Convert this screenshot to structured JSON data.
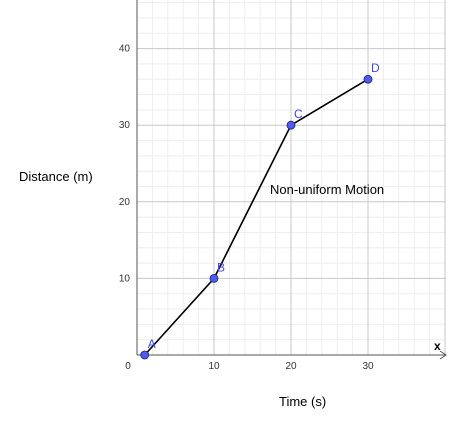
{
  "chart_data": {
    "type": "line",
    "xlabel": "Time (s)",
    "ylabel": "Distance (m)",
    "x_axis_name": "x",
    "annotation": "Non-uniform Motion",
    "xlim": [
      0,
      40
    ],
    "ylim": [
      0,
      46
    ],
    "x_ticks": [
      0,
      10,
      20,
      30
    ],
    "y_ticks": [
      10,
      20,
      30,
      40
    ],
    "grid": true,
    "point_color": "#4f5bf0",
    "label_color": "#3f48e0",
    "line_color": "#000000",
    "points": [
      {
        "label": "A",
        "x": 1,
        "y": 0
      },
      {
        "label": "B",
        "x": 10,
        "y": 10
      },
      {
        "label": "C",
        "x": 20,
        "y": 30
      },
      {
        "label": "D",
        "x": 30,
        "y": 36
      }
    ]
  }
}
